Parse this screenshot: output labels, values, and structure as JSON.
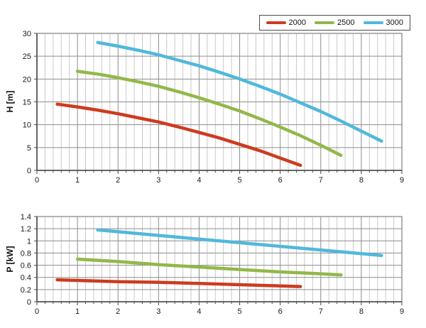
{
  "legend": {
    "items": [
      {
        "label": "2000",
        "color": "#cd3b1e"
      },
      {
        "label": "2500",
        "color": "#92b84a"
      },
      {
        "label": "3000",
        "color": "#50b8dc"
      }
    ]
  },
  "colors": {
    "background": "#ffffff",
    "minor_grid": "#c9c9c9",
    "major_grid": "#8c8c8c",
    "frame": "#999999",
    "axis": "#444444",
    "text": "#1a1a1a"
  },
  "chart_data": [
    {
      "type": "line",
      "title": "",
      "xlabel": "",
      "ylabel": "H [m]",
      "xlim": [
        0,
        9
      ],
      "ylim": [
        0,
        30
      ],
      "x_major_step": 1,
      "x_minor_step": 0.2,
      "y_major_step": 5,
      "x_tick_labels": [
        "0",
        "1",
        "2",
        "3",
        "4",
        "5",
        "6",
        "7",
        "8",
        "9"
      ],
      "y_tick_labels": [
        "0",
        "5",
        "10",
        "15",
        "20",
        "25",
        "30"
      ],
      "grid": "horizontal major + vertical major/minor",
      "legend_position": "top-right shared",
      "series": [
        {
          "name": "2000",
          "color": "#cd3b1e",
          "points": [
            [
              0.5,
              14.5
            ],
            [
              1,
              13.9
            ],
            [
              1.5,
              13.2
            ],
            [
              2,
              12.4
            ],
            [
              2.5,
              11.5
            ],
            [
              3,
              10.6
            ],
            [
              3.5,
              9.5
            ],
            [
              4,
              8.3
            ],
            [
              4.5,
              7.1
            ],
            [
              5,
              5.7
            ],
            [
              5.5,
              4.3
            ],
            [
              6,
              2.7
            ],
            [
              6.5,
              1.1
            ]
          ]
        },
        {
          "name": "2500",
          "color": "#92b84a",
          "points": [
            [
              1,
              21.7
            ],
            [
              1.5,
              21.1
            ],
            [
              2,
              20.3
            ],
            [
              2.5,
              19.4
            ],
            [
              3,
              18.4
            ],
            [
              3.5,
              17.2
            ],
            [
              4,
              15.9
            ],
            [
              4.5,
              14.5
            ],
            [
              5,
              13.0
            ],
            [
              5.5,
              11.3
            ],
            [
              6,
              9.5
            ],
            [
              6.5,
              7.6
            ],
            [
              7,
              5.5
            ],
            [
              7.5,
              3.3
            ]
          ]
        },
        {
          "name": "3000",
          "color": "#50b8dc",
          "points": [
            [
              1.5,
              28.0
            ],
            [
              2,
              27.2
            ],
            [
              2.5,
              26.3
            ],
            [
              3,
              25.3
            ],
            [
              3.5,
              24.1
            ],
            [
              4,
              22.9
            ],
            [
              4.5,
              21.5
            ],
            [
              5,
              20.0
            ],
            [
              5.5,
              18.4
            ],
            [
              6,
              16.7
            ],
            [
              6.5,
              14.8
            ],
            [
              7,
              12.9
            ],
            [
              7.5,
              10.8
            ],
            [
              8,
              8.6
            ],
            [
              8.5,
              6.4
            ]
          ]
        }
      ]
    },
    {
      "type": "line",
      "title": "",
      "xlabel": "",
      "ylabel": "P [kW]",
      "xlim": [
        0,
        9
      ],
      "ylim": [
        0,
        1.4
      ],
      "x_major_step": 1,
      "x_minor_step": 0.2,
      "y_major_step": 0.2,
      "x_tick_labels": [
        "0",
        "1",
        "2",
        "3",
        "4",
        "5",
        "6",
        "7",
        "8",
        "9"
      ],
      "y_tick_labels": [
        "0",
        "0.2",
        "0.4",
        "0.6",
        "0.8",
        "1",
        "1.2",
        "1.4"
      ],
      "grid": "horizontal major + vertical major/minor",
      "legend_position": "top-right shared",
      "series": [
        {
          "name": "2000",
          "color": "#cd3b1e",
          "points": [
            [
              0.5,
              0.36
            ],
            [
              1,
              0.35
            ],
            [
              2,
              0.33
            ],
            [
              3,
              0.32
            ],
            [
              4,
              0.3
            ],
            [
              5,
              0.28
            ],
            [
              6,
              0.26
            ],
            [
              6.5,
              0.25
            ]
          ]
        },
        {
          "name": "2500",
          "color": "#92b84a",
          "points": [
            [
              1,
              0.7
            ],
            [
              2,
              0.66
            ],
            [
              3,
              0.61
            ],
            [
              4,
              0.57
            ],
            [
              5,
              0.53
            ],
            [
              6,
              0.49
            ],
            [
              7,
              0.46
            ],
            [
              7.5,
              0.44
            ]
          ]
        },
        {
          "name": "3000",
          "color": "#50b8dc",
          "points": [
            [
              1.5,
              1.18
            ],
            [
              2,
              1.15
            ],
            [
              3,
              1.09
            ],
            [
              4,
              1.03
            ],
            [
              5,
              0.97
            ],
            [
              6,
              0.91
            ],
            [
              7,
              0.85
            ],
            [
              8,
              0.79
            ],
            [
              8.5,
              0.76
            ]
          ]
        }
      ]
    }
  ]
}
